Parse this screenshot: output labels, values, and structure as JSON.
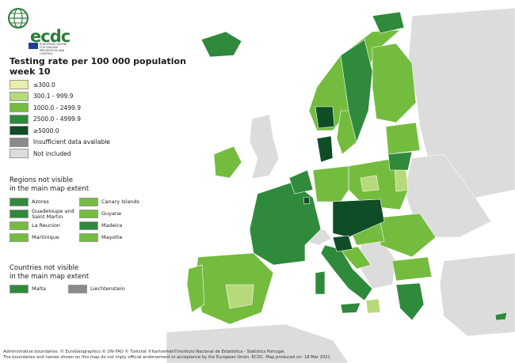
{
  "logo": {
    "text": "ecdc",
    "subtitle": "EUROPEAN CENTRE FOR DISEASE PREVENTION AND CONTROL"
  },
  "title": {
    "line1": "Testing rate per 100 000 population",
    "line2": "week 10"
  },
  "colors": {
    "le300": "#eaeeaa",
    "r300_999": "#b6da7a",
    "r1000_2499": "#74bc3e",
    "r2500_4999": "#2f8a3c",
    "ge5000": "#0f4d26",
    "insufficient": "#8a8a8a",
    "not_included": "#dcdcdc",
    "sea": "#ffffff"
  },
  "legend": [
    {
      "label": "≤300.0",
      "color": "#eaeeaa"
    },
    {
      "label": "300.1 - 999.9",
      "color": "#b6da7a"
    },
    {
      "label": "1000.0 - 2499.9",
      "color": "#74bc3e"
    },
    {
      "label": "2500.0 - 4999.9",
      "color": "#2f8a3c"
    },
    {
      "label": "≥5000.0",
      "color": "#0f4d26"
    },
    {
      "label": "Insufficient data available",
      "color": "#8a8a8a"
    },
    {
      "label": "Not included",
      "color": "#dcdcdc"
    }
  ],
  "regions_title": {
    "line1": "Regions not visible",
    "line2": "in the main map extent"
  },
  "regions": [
    {
      "label": "Azores",
      "color": "#2f8a3c"
    },
    {
      "label": "Canary Islands",
      "color": "#74bc3e"
    },
    {
      "label": "Guadeloupe and Saint Martin",
      "color": "#2f8a3c"
    },
    {
      "label": "Guyane",
      "color": "#74bc3e"
    },
    {
      "label": "La Reunion",
      "color": "#74bc3e"
    },
    {
      "label": "Madeira",
      "color": "#2f8a3c"
    },
    {
      "label": "Martinique",
      "color": "#74bc3e"
    },
    {
      "label": "Mayotte",
      "color": "#74bc3e"
    }
  ],
  "countries_title": {
    "line1": "Countries not visible",
    "line2": "in the main map extent"
  },
  "countries": [
    {
      "label": "Malta",
      "color": "#2f8a3c"
    },
    {
      "label": "Liechtenstein",
      "color": "#8a8a8a"
    }
  ],
  "footer": {
    "line1": "Administrative boundaries: © EuroGeographics © UN–FAO © Turkstat ©Kartverket©Instituto Nacional de Estatística - Statistics Portugal.",
    "line2": "The boundaries and names shown on this map do not imply official endorsement or acceptance by the European Union. ECDC. Map produced on: 18 Mar 2021"
  }
}
